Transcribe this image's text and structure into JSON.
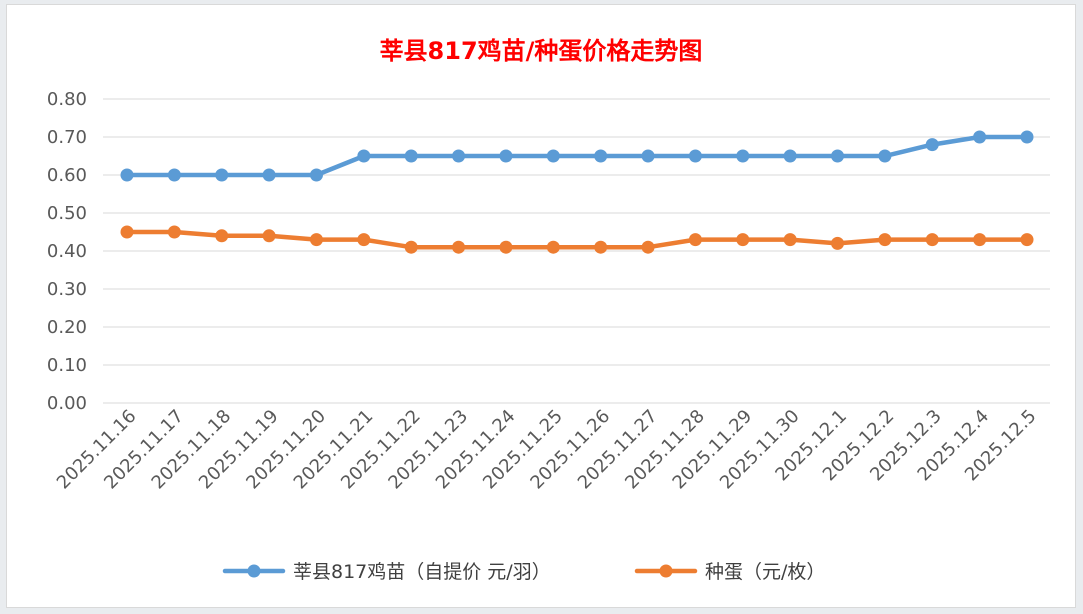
{
  "chart_data": {
    "type": "line",
    "title": "莘县817鸡苗/种蛋价格走势图",
    "categories": [
      "2025.11.16",
      "2025.11.17",
      "2025.11.18",
      "2025.11.19",
      "2025.11.20",
      "2025.11.21",
      "2025.11.22",
      "2025.11.23",
      "2025.11.24",
      "2025.11.25",
      "2025.11.26",
      "2025.11.27",
      "2025.11.28",
      "2025.11.29",
      "2025.11.30",
      "2025.12.1",
      "2025.12.2",
      "2025.12.3",
      "2025.12.4",
      "2025.12.5"
    ],
    "series": [
      {
        "name": "莘县817鸡苗（自提价 元/羽）",
        "color": "#5b9bd5",
        "values": [
          0.6,
          0.6,
          0.6,
          0.6,
          0.6,
          0.65,
          0.65,
          0.65,
          0.65,
          0.65,
          0.65,
          0.65,
          0.65,
          0.65,
          0.65,
          0.65,
          0.65,
          0.68,
          0.7,
          0.7
        ]
      },
      {
        "name": "种蛋（元/枚）",
        "color": "#ed7d31",
        "values": [
          0.45,
          0.45,
          0.44,
          0.44,
          0.43,
          0.43,
          0.41,
          0.41,
          0.41,
          0.41,
          0.41,
          0.41,
          0.43,
          0.43,
          0.43,
          0.42,
          0.43,
          0.43,
          0.43,
          0.43
        ]
      }
    ],
    "ylim": [
      0,
      0.8
    ],
    "yticks": [
      "0.00",
      "0.10",
      "0.20",
      "0.30",
      "0.40",
      "0.50",
      "0.60",
      "0.70",
      "0.80"
    ],
    "grid": true,
    "legend": "bottom",
    "title_color": "#ff0000"
  }
}
